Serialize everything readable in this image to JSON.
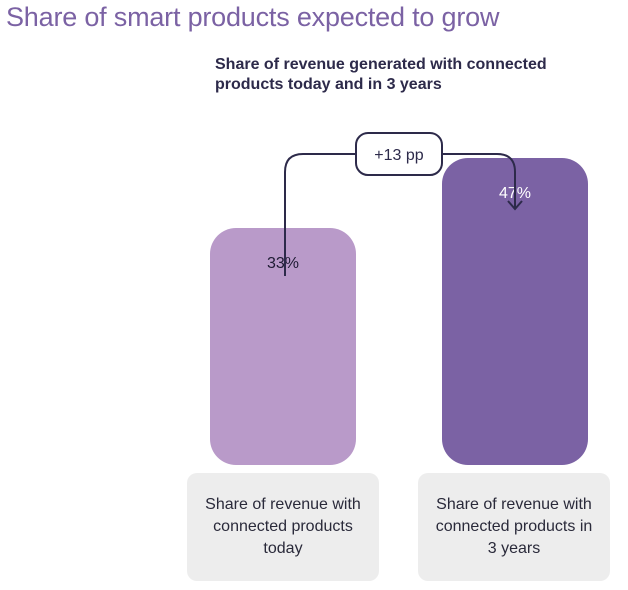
{
  "title": "Share of smart products expected to grow",
  "chart_data": {
    "type": "bar",
    "title": "Share of smart products expected to grow",
    "subtitle": "Share of revenue generated with connected products today and in 3 years",
    "categories": [
      "Share of revenue with connected products today",
      "Share of revenue with connected products in 3 years"
    ],
    "values": [
      33,
      47
    ],
    "value_labels": [
      "33%",
      "47%"
    ],
    "unit": "%",
    "ylim": [
      0,
      100
    ],
    "annotation": "+13 pp",
    "grid": false,
    "colors": [
      "#b99ac9",
      "#7b62a4"
    ]
  },
  "colors": {
    "title": "#7b62a4",
    "text_dark": "#2d2a4a",
    "category_bg": "#ededed"
  }
}
